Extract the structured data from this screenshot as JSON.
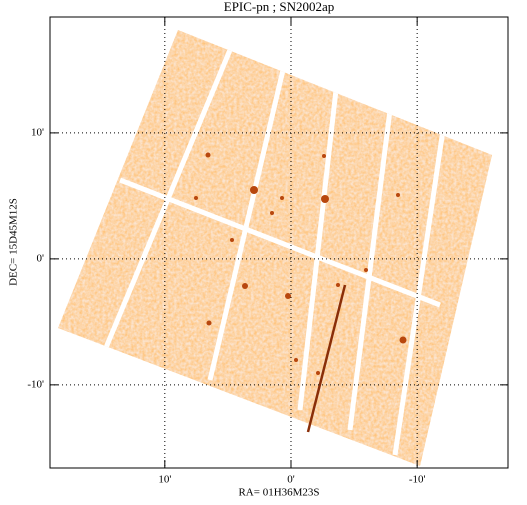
{
  "chart_data": {
    "type": "image",
    "title": "EPIC-pn ; SN2002ap",
    "xlabel": "RA= 01H36M23S",
    "ylabel": "DEC= 15D45M12S",
    "xlim": [
      19.1,
      -17.2
    ],
    "ylim": [
      -16.6,
      19.2
    ],
    "xticks": [
      {
        "value": 10,
        "label": "10'"
      },
      {
        "value": 0,
        "label": "0'"
      },
      {
        "value": -10,
        "label": "-10'"
      }
    ],
    "yticks": [
      {
        "value": 10,
        "label": "10'"
      },
      {
        "value": 0,
        "label": "0'"
      },
      {
        "value": -10,
        "label": "-10'"
      }
    ],
    "grid": true,
    "color": "#e8823c"
  }
}
